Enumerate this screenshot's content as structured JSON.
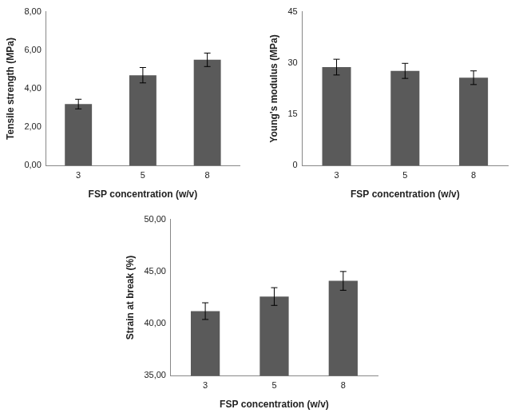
{
  "chart_data": [
    {
      "type": "bar",
      "categories": [
        "3",
        "5",
        "8"
      ],
      "values": [
        3.2,
        4.7,
        5.5
      ],
      "errors": [
        0.25,
        0.4,
        0.35
      ],
      "color": "#5a5a5a",
      "x_label": "FSP concentration (w/v)",
      "y_label": "Tensile strength (MPa)",
      "ylim": [
        0,
        8
      ],
      "yticks": [
        {
          "value": 0,
          "label": "0,00"
        },
        {
          "value": 2,
          "label": "2,00"
        },
        {
          "value": 4,
          "label": "4,00"
        },
        {
          "value": 6,
          "label": "6,00"
        },
        {
          "value": 8,
          "label": "8,00"
        }
      ],
      "grid": false
    },
    {
      "type": "bar",
      "categories": [
        "3",
        "5",
        "8"
      ],
      "values": [
        28.8,
        27.7,
        25.7
      ],
      "errors": [
        2.3,
        2.2,
        2.0
      ],
      "color": "#5a5a5a",
      "x_label": "FSP concentration (w/v)",
      "y_label": "Young's modulus (MPa)",
      "ylim": [
        0,
        45
      ],
      "yticks": [
        0,
        15,
        30,
        45
      ],
      "grid": false
    },
    {
      "type": "bar",
      "categories": [
        "3",
        "5",
        "8"
      ],
      "values": [
        41.2,
        42.6,
        44.1
      ],
      "errors": [
        0.8,
        0.85,
        0.9
      ],
      "color": "#5a5a5a",
      "x_label": "FSP concentration (w/v)",
      "y_label": "Strain at break (%)",
      "ylim": [
        35,
        50
      ],
      "yticks": [
        {
          "value": 35,
          "label": "35,00"
        },
        {
          "value": 40,
          "label": "40,00"
        },
        {
          "value": 45,
          "label": "45,00"
        },
        {
          "value": 50,
          "label": "50,00"
        }
      ],
      "grid": false
    }
  ]
}
